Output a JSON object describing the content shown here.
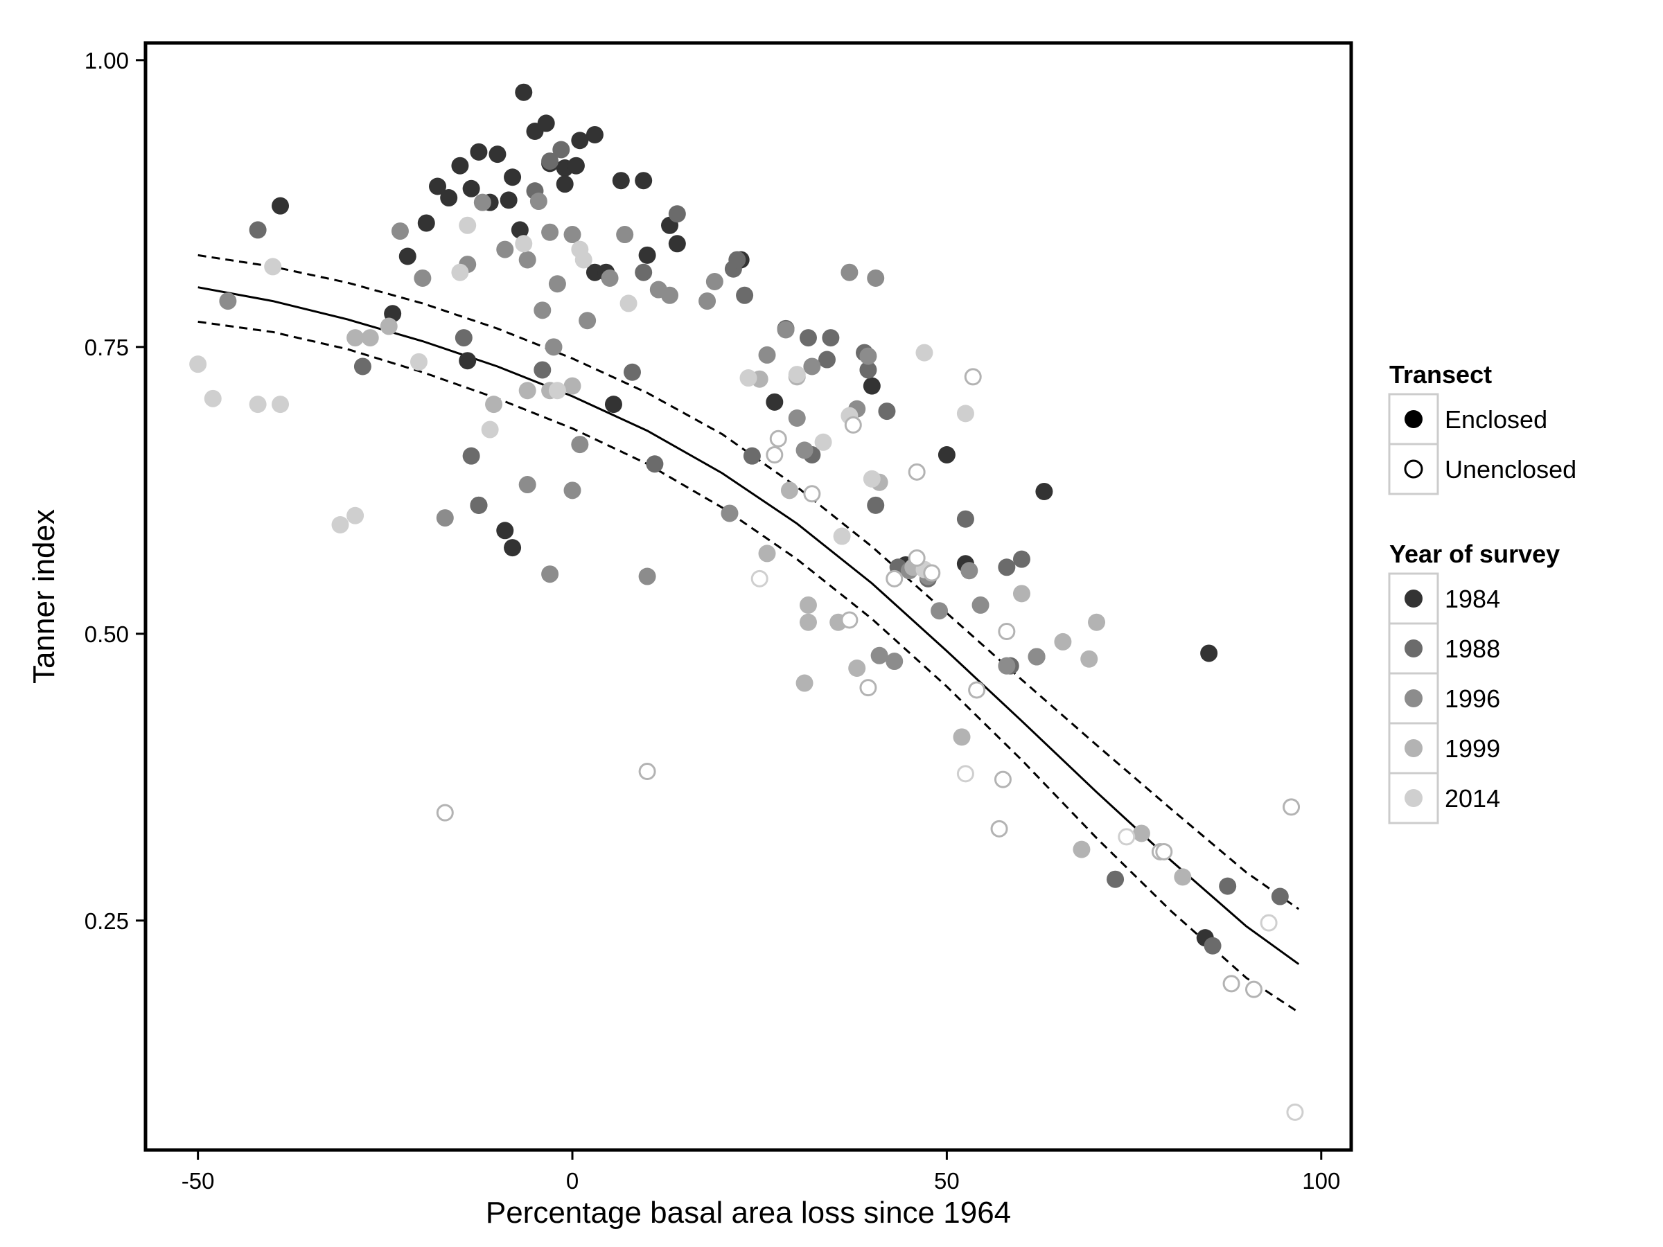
{
  "chart_data": {
    "type": "scatter",
    "xlabel": "Percentage basal area loss since 1964",
    "ylabel": "Tanner index",
    "xlim": [
      -57,
      104
    ],
    "ylim": [
      0.05,
      1.015
    ],
    "x_ticks": [
      -50,
      0,
      50,
      100
    ],
    "x_tick_labels": [
      "-50",
      "0",
      "50",
      "100"
    ],
    "y_ticks": [
      0.25,
      0.5,
      0.75,
      1.0
    ],
    "y_tick_labels": [
      "0.25",
      "0.50",
      "0.75",
      "1.00"
    ],
    "grid": false,
    "legend_position": "right",
    "legends": [
      {
        "title": "Transect",
        "entries": [
          {
            "label": "Enclosed",
            "marker": "filled-circle",
            "color": "#000000"
          },
          {
            "label": "Unenclosed",
            "marker": "open-circle",
            "color": "#000000"
          }
        ]
      },
      {
        "title": "Year of survey",
        "entries": [
          {
            "label": "1984",
            "color": "#333333"
          },
          {
            "label": "1988",
            "color": "#6b6b6b"
          },
          {
            "label": "1996",
            "color": "#8c8c8c"
          },
          {
            "label": "1999",
            "color": "#b3b3b3"
          },
          {
            "label": "2014",
            "color": "#cfcfcf"
          }
        ]
      }
    ],
    "year_colors": {
      "1984": "#333333",
      "1988": "#6b6b6b",
      "1996": "#8c8c8c",
      "1999": "#b3b3b3",
      "2014": "#cfcfcf"
    },
    "fit": {
      "style": "solid",
      "x": [
        -50,
        -40,
        -30,
        -20,
        -10,
        0,
        10,
        20,
        30,
        40,
        50,
        60,
        70,
        80,
        90,
        97
      ],
      "y": [
        0.802,
        0.79,
        0.774,
        0.755,
        0.733,
        0.707,
        0.677,
        0.64,
        0.596,
        0.544,
        0.485,
        0.424,
        0.362,
        0.302,
        0.245,
        0.212
      ]
    },
    "ci_upper": {
      "style": "dashed",
      "x": [
        -50,
        -40,
        -30,
        -20,
        -10,
        0,
        10,
        20,
        30,
        40,
        50,
        60,
        70,
        80,
        90,
        97
      ],
      "y": [
        0.83,
        0.82,
        0.806,
        0.788,
        0.766,
        0.74,
        0.71,
        0.674,
        0.628,
        0.576,
        0.518,
        0.46,
        0.403,
        0.347,
        0.292,
        0.26
      ]
    },
    "ci_lower": {
      "style": "dashed",
      "x": [
        -50,
        -40,
        -30,
        -20,
        -10,
        0,
        10,
        20,
        30,
        40,
        50,
        60,
        70,
        80,
        90,
        97
      ],
      "y": [
        0.772,
        0.763,
        0.748,
        0.728,
        0.705,
        0.679,
        0.648,
        0.61,
        0.565,
        0.513,
        0.454,
        0.39,
        0.322,
        0.258,
        0.2,
        0.17
      ]
    },
    "series": [
      {
        "name": "1984",
        "transect": "Enclosed",
        "x": [
          -6.5,
          -5,
          -3.5,
          -1,
          1,
          3,
          -8,
          -10,
          -12.5,
          -15,
          -8.5,
          -11,
          -1,
          0.5,
          -3,
          -13.5,
          -18,
          -19.5,
          -16.5,
          -7,
          -22,
          -24,
          -14,
          -12.5,
          -9,
          -8,
          -39,
          5.5,
          6.5,
          10,
          13,
          14,
          9.5,
          22.5,
          3,
          4.5,
          27,
          40,
          50,
          52.5,
          44.5,
          63,
          85,
          84.5
        ],
        "y": [
          0.972,
          0.938,
          0.945,
          0.906,
          0.93,
          0.935,
          0.898,
          0.918,
          0.92,
          0.908,
          0.878,
          0.876,
          0.892,
          0.908,
          0.91,
          0.888,
          0.89,
          0.858,
          0.88,
          0.852,
          0.829,
          0.779,
          0.738,
          0.612,
          0.59,
          0.575,
          0.873,
          0.7,
          0.895,
          0.83,
          0.856,
          0.84,
          0.895,
          0.826,
          0.815,
          0.815,
          0.702,
          0.716,
          0.656,
          0.561,
          0.56,
          0.624,
          0.483,
          0.235
        ]
      },
      {
        "name": "1988",
        "transect": "Enclosed",
        "x": [
          -42,
          -28,
          -14.5,
          -13.5,
          -12.5,
          -5,
          -3,
          -1.5,
          -4,
          8,
          9.5,
          11,
          14,
          21.5,
          23,
          22,
          24,
          28.5,
          31.5,
          32,
          34,
          34.5,
          39,
          39.5,
          40.5,
          42,
          43.5,
          47.5,
          52.5,
          58,
          60,
          62,
          58.5,
          72.5,
          85.5,
          87.5,
          94.5
        ],
        "y": [
          0.852,
          0.733,
          0.758,
          0.655,
          0.612,
          0.886,
          0.912,
          0.922,
          0.73,
          0.728,
          0.815,
          0.648,
          0.866,
          0.818,
          0.795,
          0.826,
          0.655,
          0.766,
          0.758,
          0.656,
          0.739,
          0.758,
          0.745,
          0.73,
          0.612,
          0.694,
          0.558,
          0.548,
          0.6,
          0.558,
          0.565,
          0.48,
          0.472,
          0.286,
          0.228,
          0.28,
          0.271
        ]
      },
      {
        "name": "1996",
        "transect": "Enclosed",
        "x": [
          -46,
          -23,
          -20,
          -14,
          -12,
          -9,
          -6,
          -4.5,
          -3,
          -2,
          0,
          2,
          5,
          7,
          11.5,
          13,
          18,
          19,
          21,
          26,
          28.5,
          30,
          31,
          32,
          38,
          39.5,
          41,
          43,
          45,
          47.5,
          49,
          53,
          54.5,
          58,
          62,
          37,
          40.5,
          0,
          -6,
          -4,
          -2.5,
          1,
          -17,
          -3,
          10
        ],
        "y": [
          0.79,
          0.851,
          0.81,
          0.822,
          0.876,
          0.835,
          0.826,
          0.877,
          0.85,
          0.805,
          0.848,
          0.773,
          0.81,
          0.848,
          0.8,
          0.795,
          0.79,
          0.807,
          0.605,
          0.743,
          0.765,
          0.688,
          0.66,
          0.733,
          0.696,
          0.742,
          0.481,
          0.476,
          0.555,
          0.55,
          0.52,
          0.555,
          0.525,
          0.472,
          0.48,
          0.815,
          0.81,
          0.625,
          0.63,
          0.782,
          0.75,
          0.665,
          0.601,
          0.552,
          0.55
        ]
      },
      {
        "name": "1999",
        "transect": "Enclosed",
        "x": [
          -29,
          -27,
          -24.5,
          -10.5,
          -6,
          -3,
          0,
          25,
          26,
          29,
          30,
          31.5,
          35.5,
          38,
          41,
          45.5,
          52,
          60,
          65.5,
          69,
          68,
          76,
          81.5,
          70,
          31.5,
          31
        ],
        "y": [
          0.758,
          0.758,
          0.768,
          0.7,
          0.712,
          0.712,
          0.716,
          0.722,
          0.57,
          0.625,
          0.724,
          0.525,
          0.51,
          0.47,
          0.632,
          0.558,
          0.41,
          0.535,
          0.493,
          0.478,
          0.312,
          0.326,
          0.288,
          0.51,
          0.51,
          0.457
        ]
      },
      {
        "name": "2014",
        "transect": "Enclosed",
        "x": [
          -50,
          -48,
          -42,
          -40,
          -39,
          -29,
          -31,
          -20.5,
          -15,
          -14,
          -11,
          -6.5,
          -2,
          1,
          1.5,
          7.5,
          23.5,
          30,
          33.5,
          36,
          40,
          47,
          52.5,
          47,
          37
        ],
        "y": [
          0.735,
          0.705,
          0.7,
          0.82,
          0.7,
          0.603,
          0.595,
          0.737,
          0.815,
          0.856,
          0.678,
          0.84,
          0.712,
          0.835,
          0.826,
          0.788,
          0.723,
          0.726,
          0.667,
          0.585,
          0.635,
          0.745,
          0.692,
          0.556,
          0.69
        ]
      },
      {
        "name": "Unenclosed",
        "transect": "Unenclosed",
        "x": [
          -17,
          10,
          53.5,
          37.5,
          27.5,
          27,
          32,
          46,
          48,
          54,
          37,
          46,
          43,
          39.5,
          52.5,
          57.5,
          57,
          58,
          74,
          78.5,
          79,
          88,
          91,
          93,
          96,
          96.5,
          25
        ],
        "y": [
          0.344,
          0.38,
          0.724,
          0.682,
          0.67,
          0.656,
          0.622,
          0.641,
          0.553,
          0.451,
          0.512,
          0.566,
          0.548,
          0.453,
          0.378,
          0.373,
          0.33,
          0.502,
          0.323,
          0.31,
          0.31,
          0.195,
          0.19,
          0.248,
          0.349,
          0.083,
          0.548
        ],
        "colors": [
          "#b3b3b3",
          "#b3b3b3",
          "#b3b3b3",
          "#b3b3b3",
          "#b3b3b3",
          "#b3b3b3",
          "#b3b3b3",
          "#b3b3b3",
          "#b3b3b3",
          "#b3b3b3",
          "#b3b3b3",
          "#b3b3b3",
          "#b3b3b3",
          "#b3b3b3",
          "#cfcfcf",
          "#b3b3b3",
          "#b3b3b3",
          "#b3b3b3",
          "#cfcfcf",
          "#b3b3b3",
          "#b3b3b3",
          "#b3b3b3",
          "#b3b3b3",
          "#cfcfcf",
          "#b3b3b3",
          "#cfcfcf",
          "#cfcfcf"
        ]
      }
    ]
  }
}
